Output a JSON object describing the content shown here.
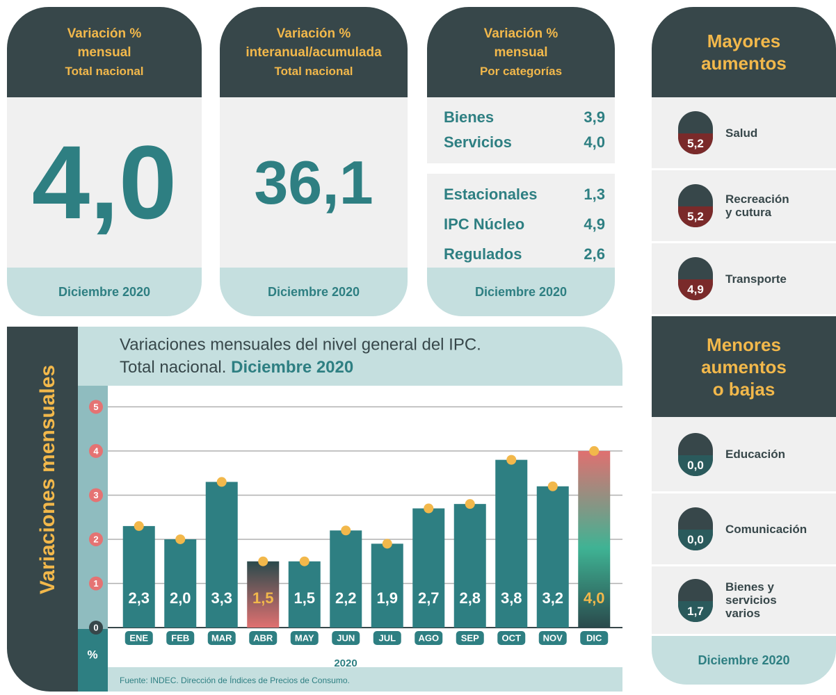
{
  "cards": [
    {
      "title": [
        "Variación %",
        "mensual",
        "Total nacional"
      ],
      "value": "4,0",
      "footer": "Diciembre 2020"
    },
    {
      "title": [
        "Variación %",
        "interanual/acumulada",
        "Total nacional"
      ],
      "value": "36,1",
      "footer": "Diciembre 2020"
    },
    {
      "title": [
        "Variación %",
        "mensual",
        "Por categorías"
      ],
      "groups": [
        [
          {
            "name": "Bienes",
            "value": "3,9"
          },
          {
            "name": "Servicios",
            "value": "4,0"
          }
        ],
        [
          {
            "name": "Estacionales",
            "value": "1,3"
          },
          {
            "name": "IPC Núcleo",
            "value": "4,9"
          },
          {
            "name": "Regulados",
            "value": "2,6"
          }
        ]
      ],
      "footer": "Diciembre 2020"
    }
  ],
  "side": {
    "top": {
      "title": [
        "Mayores",
        "aumentos"
      ],
      "items": [
        {
          "value": "5,2",
          "label": [
            "Salud"
          ]
        },
        {
          "value": "5,2",
          "label": [
            "Recreación",
            "y cutura"
          ]
        },
        {
          "value": "4,9",
          "label": [
            "Transporte"
          ]
        }
      ]
    },
    "bottom": {
      "title": [
        "Menores",
        "aumentos",
        "o bajas"
      ],
      "items": [
        {
          "value": "0,0",
          "label": [
            "Educación"
          ]
        },
        {
          "value": "0,0",
          "label": [
            "Comunicación"
          ]
        },
        {
          "value": "1,7",
          "label": [
            "Bienes y",
            "servicios",
            "varios"
          ]
        }
      ]
    },
    "footer": "Diciembre 2020"
  },
  "chart_data": {
    "type": "bar",
    "title": [
      "Variaciones mensuales del nivel general del IPC.",
      "Total nacional.",
      "Diciembre 2020"
    ],
    "y_label": "Variaciones mensuales",
    "y_unit": "%",
    "x_label": "2020",
    "source": "Fuente: INDEC. Dirección de Índices de Precios de Consumo.",
    "categories": [
      "ENE",
      "FEB",
      "MAR",
      "ABR",
      "MAY",
      "JUN",
      "JUL",
      "AGO",
      "SEP",
      "OCT",
      "NOV",
      "DIC"
    ],
    "values": [
      2.3,
      2.0,
      3.3,
      1.5,
      1.5,
      2.2,
      1.9,
      2.7,
      2.8,
      3.8,
      3.2,
      4.0
    ],
    "value_labels": [
      "2,3",
      "2,0",
      "3,3",
      "1,5",
      "1,5",
      "2,2",
      "1,9",
      "2,7",
      "2,8",
      "3,8",
      "3,2",
      "4,0"
    ],
    "colors": [
      "#2e7f82",
      "#2e7f82",
      "#2e7f82",
      "#e07070",
      "#2e7f82",
      "#2e7f82",
      "#2e7f82",
      "#2e7f82",
      "#2e7f82",
      "#2e7f82",
      "#2e7f82",
      "#e07070"
    ],
    "label_colors": [
      "#ffffff",
      "#ffffff",
      "#ffffff",
      "#f2b84b",
      "#ffffff",
      "#ffffff",
      "#ffffff",
      "#ffffff",
      "#ffffff",
      "#ffffff",
      "#ffffff",
      "#f2b84b"
    ],
    "dot_color": "#f2b84b",
    "ylim": [
      0,
      5.4
    ],
    "yticks": [
      0,
      1,
      2,
      3,
      4,
      5
    ],
    "grid": true
  }
}
